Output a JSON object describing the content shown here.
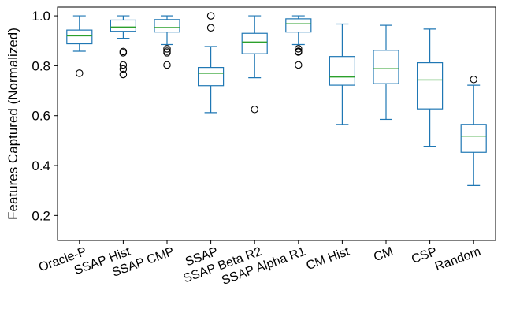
{
  "chart_data": {
    "type": "box",
    "title": "",
    "xlabel": "",
    "ylabel": "Features Captured (Normalized)",
    "ylim": [
      0.1,
      1.035
    ],
    "yticks": [
      0.2,
      0.4,
      0.6,
      0.8,
      1.0
    ],
    "ytick_labels": [
      "0.2",
      "0.4",
      "0.6",
      "0.8",
      "1.0"
    ],
    "grid": false,
    "legend": "none",
    "colors": {
      "box": "#1f77b4",
      "median": "#2ca02c",
      "outlier": "#000000"
    },
    "categories": [
      "Oracle-P",
      "SSAP Hist",
      "SSAP CMP",
      "SSAP",
      "SSAP Beta R2",
      "SSAP Alpha R1",
      "CM Hist",
      "CM",
      "CSP",
      "Random"
    ],
    "boxes": [
      {
        "label": "Oracle-P",
        "whisker_low": 0.858,
        "q1": 0.888,
        "median": 0.92,
        "q3": 0.943,
        "whisker_high": 1.0,
        "outliers": [
          0.77
        ]
      },
      {
        "label": "SSAP Hist",
        "whisker_low": 0.91,
        "q1": 0.938,
        "median": 0.955,
        "q3": 0.983,
        "whisker_high": 1.0,
        "outliers": [
          0.857,
          0.852,
          0.803,
          0.787,
          0.765
        ]
      },
      {
        "label": "SSAP CMP",
        "whisker_low": 0.885,
        "q1": 0.935,
        "median": 0.953,
        "q3": 0.985,
        "whisker_high": 1.0,
        "outliers": [
          0.868,
          0.858,
          0.852,
          0.803
        ]
      },
      {
        "label": "SSAP",
        "whisker_low": 0.612,
        "q1": 0.72,
        "median": 0.77,
        "q3": 0.793,
        "whisker_high": 0.877,
        "outliers": [
          1.0,
          0.952
        ]
      },
      {
        "label": "SSAP Beta R2",
        "whisker_low": 0.752,
        "q1": 0.848,
        "median": 0.895,
        "q3": 0.93,
        "whisker_high": 1.0,
        "outliers": [
          0.625
        ]
      },
      {
        "label": "SSAP Alpha R1",
        "whisker_low": 0.885,
        "q1": 0.935,
        "median": 0.968,
        "q3": 0.988,
        "whisker_high": 1.0,
        "outliers": [
          0.868,
          0.858,
          0.855,
          0.803
        ]
      },
      {
        "label": "CM Hist",
        "whisker_low": 0.565,
        "q1": 0.722,
        "median": 0.755,
        "q3": 0.837,
        "whisker_high": 0.967,
        "outliers": []
      },
      {
        "label": "CM",
        "whisker_low": 0.585,
        "q1": 0.728,
        "median": 0.788,
        "q3": 0.862,
        "whisker_high": 0.962,
        "outliers": []
      },
      {
        "label": "CSP",
        "whisker_low": 0.477,
        "q1": 0.627,
        "median": 0.743,
        "q3": 0.812,
        "whisker_high": 0.947,
        "outliers": []
      },
      {
        "label": "Random",
        "whisker_low": 0.32,
        "q1": 0.453,
        "median": 0.518,
        "q3": 0.565,
        "whisker_high": 0.722,
        "outliers": [
          0.745
        ]
      }
    ]
  }
}
